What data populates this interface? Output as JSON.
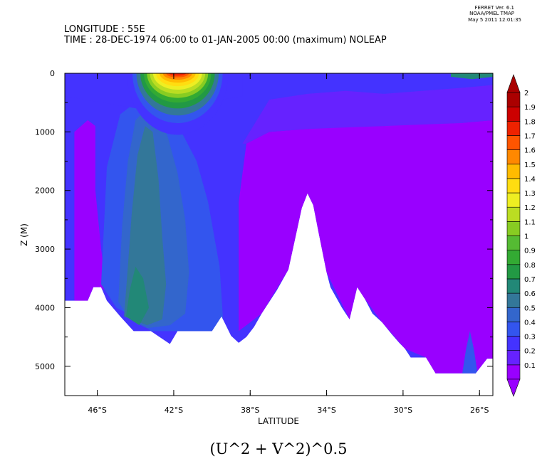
{
  "header": {
    "line1": "LONGITUDE : 55E",
    "line2": "TIME : 28-DEC-1974 06:00 to 01-JAN-2005 00:00 (maximum) NOLEAP"
  },
  "stamp": {
    "line1": "FERRET Ver. 6.1",
    "line2": "NOAA/PMEL TMAP",
    "line3": "May  5 2011 12:01:35"
  },
  "chart_data": {
    "type": "heatmap",
    "title": "(U^2 + V^2)^0.5",
    "xlabel": "LATITUDE",
    "ylabel": "Z (M)",
    "x_range": [
      -47.7,
      -25.3
    ],
    "y_range": [
      5500,
      0
    ],
    "x_ticks": [
      "46°S",
      "42°S",
      "38°S",
      "34°S",
      "30°S",
      "26°S"
    ],
    "y_ticks": [
      "0",
      "1000",
      "2000",
      "3000",
      "4000",
      "5000"
    ],
    "colorbar": {
      "levels": [
        "0.1",
        "0.2",
        "0.3",
        "0.4",
        "0.5",
        "0.6",
        "0.7",
        "0.8",
        "0.9",
        "1",
        "1.1",
        "1.2",
        "1.3",
        "1.4",
        "1.5",
        "1.6",
        "1.7",
        "1.8",
        "1.9",
        "2"
      ],
      "colors": [
        "#9900ff",
        "#6622ff",
        "#4433ff",
        "#3355ee",
        "#3366cc",
        "#337799",
        "#228877",
        "#229944",
        "#33aa33",
        "#55bb33",
        "#88cc22",
        "#bbdd22",
        "#eeee22",
        "#ffdd11",
        "#ffbb00",
        "#ff8800",
        "#ff5500",
        "#ee2200",
        "#cc0000",
        "#aa0000"
      ]
    },
    "bottom_profile": {
      "lat": [
        -47.7,
        -46.5,
        -46.2,
        -45.8,
        -45.5,
        -44.8,
        -44.1,
        -43.2,
        -42.2,
        -41.8,
        -41.2,
        -40.6,
        -40,
        -39.5,
        -39,
        -38.6,
        -38.2,
        -37.8,
        -37.4,
        -37,
        -36.6,
        -36,
        -35.6,
        -35.3,
        -35,
        -34.7,
        -34.4,
        -34,
        -33.8,
        -33.2,
        -32.8,
        -32.4,
        -32,
        -31.6,
        -31.1,
        -30.6,
        -30.2,
        -29.9,
        -29.6,
        -29.2,
        -28.8,
        -28.3,
        -27.5,
        -26.8,
        -26.2,
        -25.6,
        -25.3
      ],
      "depth": [
        3880,
        3880,
        3650,
        3650,
        3880,
        4150,
        4400,
        4400,
        4620,
        4400,
        4400,
        4400,
        4400,
        4150,
        4480,
        4600,
        4500,
        4330,
        4100,
        3900,
        3700,
        3350,
        2750,
        2300,
        2050,
        2250,
        2750,
        3400,
        3650,
        4000,
        4200,
        3650,
        3850,
        4100,
        4250,
        4450,
        4600,
        4700,
        4850,
        4850,
        4850,
        5120,
        5120,
        5120,
        5120,
        4870,
        4870
      ]
    },
    "depth_bands": [
      {
        "level": "0.1",
        "poly": [
          [
            -47.2,
            3880
          ],
          [
            -47.2,
            1000
          ],
          [
            -46.5,
            800
          ],
          [
            -46.1,
            900
          ],
          [
            -46.1,
            2000
          ],
          [
            -45.8,
            3000
          ],
          [
            -45.5,
            3700
          ],
          [
            -46.2,
            3650
          ],
          [
            -46.5,
            3880
          ]
        ]
      },
      {
        "level": "0.1",
        "poly": [
          [
            -38.6,
            4400
          ],
          [
            -38.6,
            2200
          ],
          [
            -38.2,
            1200
          ],
          [
            -37,
            1000
          ],
          [
            -35,
            950
          ],
          [
            -33,
            900
          ],
          [
            -31,
            900
          ],
          [
            -29,
            850
          ],
          [
            -27,
            850
          ],
          [
            -25.3,
            800
          ],
          [
            -25.3,
            4870
          ],
          [
            -25.6,
            4870
          ],
          [
            -26.2,
            5120
          ],
          [
            -28.3,
            5120
          ],
          [
            -28.8,
            4850
          ],
          [
            -29.9,
            4700
          ],
          [
            -31.1,
            4250
          ],
          [
            -32,
            3850
          ],
          [
            -32.8,
            4200
          ],
          [
            -34,
            3400
          ],
          [
            -35,
            2050
          ],
          [
            -36,
            3350
          ],
          [
            -37.4,
            4100
          ]
        ]
      },
      {
        "level": "0.2",
        "poly": [
          [
            -38.4,
            1200
          ],
          [
            -37,
            450
          ],
          [
            -35,
            350
          ],
          [
            -33,
            300
          ],
          [
            -31,
            350
          ],
          [
            -29,
            300
          ],
          [
            -27,
            250
          ],
          [
            -25.3,
            200
          ],
          [
            -25.3,
            800
          ],
          [
            -27,
            850
          ],
          [
            -31,
            900
          ],
          [
            -35,
            950
          ],
          [
            -37,
            1000
          ],
          [
            -38.2,
            1200
          ]
        ]
      },
      {
        "level": "0.4",
        "poly": [
          [
            -45.8,
            3600
          ],
          [
            -45.5,
            1600
          ],
          [
            -44.8,
            700
          ],
          [
            -44,
            500
          ],
          [
            -43.2,
            500
          ],
          [
            -42.4,
            700
          ],
          [
            -41.6,
            1000
          ],
          [
            -40.8,
            1500
          ],
          [
            -40.2,
            2200
          ],
          [
            -39.6,
            3300
          ],
          [
            -39.4,
            4300
          ],
          [
            -40,
            4400
          ],
          [
            -41,
            4400
          ],
          [
            -42,
            4400
          ],
          [
            -43.2,
            4400
          ],
          [
            -44.1,
            4150
          ],
          [
            -45,
            4000
          ]
        ]
      },
      {
        "level": "0.5",
        "poly": [
          [
            -44.9,
            3900
          ],
          [
            -44.7,
            2600
          ],
          [
            -44.4,
            1500
          ],
          [
            -44,
            800
          ],
          [
            -43.4,
            600
          ],
          [
            -42.8,
            700
          ],
          [
            -42.3,
            1100
          ],
          [
            -41.8,
            1700
          ],
          [
            -41.4,
            2500
          ],
          [
            -41.2,
            3400
          ],
          [
            -41.4,
            4100
          ],
          [
            -42.2,
            4300
          ],
          [
            -43.4,
            4350
          ],
          [
            -44.3,
            4200
          ]
        ]
      },
      {
        "level": "0.6",
        "poly": [
          [
            -44.6,
            4150
          ],
          [
            -44.4,
            3300
          ],
          [
            -44.2,
            2400
          ],
          [
            -43.9,
            1400
          ],
          [
            -43.5,
            900
          ],
          [
            -43.1,
            1000
          ],
          [
            -42.8,
            1800
          ],
          [
            -42.6,
            2800
          ],
          [
            -42.4,
            3600
          ],
          [
            -42.6,
            4200
          ],
          [
            -43.4,
            4300
          ]
        ]
      },
      {
        "level": "0.7",
        "poly": [
          [
            -44.5,
            4150
          ],
          [
            -44.3,
            3700
          ],
          [
            -44,
            3300
          ],
          [
            -43.6,
            3500
          ],
          [
            -43.3,
            4000
          ],
          [
            -43.8,
            4300
          ]
        ]
      },
      {
        "level": "0.4",
        "poly": [
          [
            -26.9,
            5120
          ],
          [
            -26.7,
            4700
          ],
          [
            -26.5,
            4400
          ],
          [
            -26.3,
            4700
          ],
          [
            -26.1,
            5120
          ]
        ]
      }
    ],
    "surface_jet": {
      "center_lat": -41.8,
      "min_lat": -44.6,
      "max_lat": -39.3,
      "max_depth": 1050,
      "levels_by_depth": [
        {
          "depth": 1050,
          "level": "0.3"
        },
        {
          "depth": 850,
          "level": "0.4"
        },
        {
          "depth": 720,
          "level": "0.6"
        },
        {
          "depth": 600,
          "level": "0.8"
        },
        {
          "depth": 500,
          "level": "0.9"
        },
        {
          "depth": 420,
          "level": "1.1"
        },
        {
          "depth": 350,
          "level": "1.2"
        },
        {
          "depth": 280,
          "level": "1.3"
        },
        {
          "depth": 220,
          "level": "1.4"
        },
        {
          "depth": 160,
          "level": "1.5"
        },
        {
          "depth": 110,
          "level": "1.6"
        },
        {
          "depth": 70,
          "level": "1.7"
        },
        {
          "depth": 40,
          "level": "1.8"
        }
      ]
    },
    "surface_shallow": [
      {
        "lat0": -47.7,
        "lat1": -38.4,
        "depth": 650,
        "level": "0.3"
      },
      {
        "lat0": -27.5,
        "lat1": -25.3,
        "depth": 100,
        "level": "0.7"
      }
    ]
  }
}
